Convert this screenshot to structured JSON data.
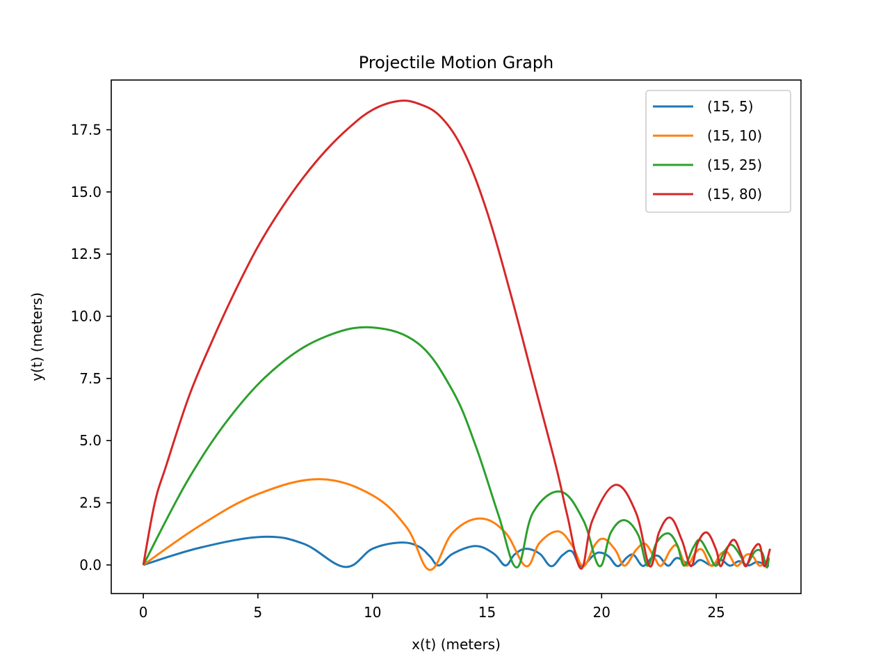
{
  "chart_data": {
    "type": "line",
    "title": "Projectile Motion Graph",
    "xlabel": "x(t) (meters)",
    "ylabel": "y(t) (meters)",
    "xlim": [
      -1.4,
      28.7
    ],
    "ylim": [
      -1.15,
      19.5
    ],
    "xticks": [
      0,
      5,
      10,
      15,
      20,
      25
    ],
    "xtick_labels": [
      "0",
      "5",
      "10",
      "15",
      "20",
      "25"
    ],
    "yticks": [
      0,
      2.5,
      5,
      7.5,
      10,
      12.5,
      15,
      17.5
    ],
    "ytick_labels": [
      "0.0",
      "2.5",
      "5.0",
      "7.5",
      "10.0",
      "12.5",
      "15.0",
      "17.5"
    ],
    "grid": false,
    "legend_position": "top-right",
    "series": [
      {
        "name": "(15, 5)",
        "color": "#1f77b4",
        "points": [
          [
            0,
            0
          ],
          [
            2.5,
            0.7
          ],
          [
            5.2,
            1.13
          ],
          [
            7,
            0.85
          ],
          [
            8.8,
            -0.08
          ],
          [
            10,
            0.65
          ],
          [
            11.2,
            0.9
          ],
          [
            12,
            0.75
          ],
          [
            12.5,
            0.35
          ],
          [
            12.9,
            -0.02
          ],
          [
            13.5,
            0.45
          ],
          [
            14.5,
            0.76
          ],
          [
            15.3,
            0.45
          ],
          [
            15.8,
            -0.02
          ],
          [
            16.2,
            0.42
          ],
          [
            16.7,
            0.65
          ],
          [
            17.3,
            0.45
          ],
          [
            17.8,
            -0.05
          ],
          [
            18.3,
            0.4
          ],
          [
            18.7,
            0.55
          ],
          [
            19.1,
            -0.05
          ],
          [
            19.6,
            0.35
          ],
          [
            19.9,
            0.5
          ],
          [
            20.3,
            0.35
          ],
          [
            20.7,
            -0.05
          ],
          [
            21.1,
            0.3
          ],
          [
            21.4,
            0.4
          ],
          [
            21.8,
            -0.04
          ],
          [
            22.2,
            0.3
          ],
          [
            22.5,
            0.35
          ],
          [
            22.9,
            -0.03
          ],
          [
            23.3,
            0.28
          ],
          [
            23.9,
            -0.02
          ],
          [
            24.3,
            0.2
          ],
          [
            24.8,
            -0.02
          ],
          [
            25.2,
            0.2
          ],
          [
            25.6,
            -0.03
          ],
          [
            26.0,
            0.15
          ],
          [
            26.4,
            -0.02
          ],
          [
            26.8,
            0.12
          ],
          [
            27.3,
            -0.05
          ]
        ]
      },
      {
        "name": "(15, 10)",
        "color": "#ff7f0e",
        "points": [
          [
            0,
            0
          ],
          [
            2.5,
            1.6
          ],
          [
            5,
            2.85
          ],
          [
            7.7,
            3.45
          ],
          [
            10,
            2.8
          ],
          [
            11.5,
            1.5
          ],
          [
            12.5,
            -0.2
          ],
          [
            13.5,
            1.3
          ],
          [
            14.7,
            1.87
          ],
          [
            15.8,
            1.3
          ],
          [
            16.7,
            -0.05
          ],
          [
            17.3,
            0.9
          ],
          [
            18.1,
            1.35
          ],
          [
            18.7,
            0.8
          ],
          [
            19.2,
            -0.05
          ],
          [
            19.7,
            0.8
          ],
          [
            20.1,
            1.05
          ],
          [
            20.6,
            0.6
          ],
          [
            21.0,
            -0.03
          ],
          [
            21.5,
            0.6
          ],
          [
            21.9,
            0.85
          ],
          [
            22.3,
            0.3
          ],
          [
            22.6,
            -0.03
          ],
          [
            23.0,
            0.6
          ],
          [
            23.3,
            0.75
          ],
          [
            23.7,
            -0.03
          ],
          [
            24.1,
            0.5
          ],
          [
            24.4,
            0.6
          ],
          [
            24.8,
            -0.04
          ],
          [
            25.2,
            0.45
          ],
          [
            25.5,
            0.5
          ],
          [
            25.9,
            -0.04
          ],
          [
            26.3,
            0.4
          ],
          [
            26.6,
            0.35
          ],
          [
            26.9,
            -0.03
          ],
          [
            27.3,
            0.25
          ]
        ]
      },
      {
        "name": "(15, 25)",
        "color": "#2ca02c",
        "points": [
          [
            0,
            0
          ],
          [
            2,
            3.5
          ],
          [
            4,
            6.2
          ],
          [
            6,
            8.1
          ],
          [
            8,
            9.2
          ],
          [
            10,
            9.55
          ],
          [
            12,
            8.9
          ],
          [
            13.5,
            7
          ],
          [
            14.5,
            4.8
          ],
          [
            15.5,
            2
          ],
          [
            16.3,
            -0.1
          ],
          [
            17.0,
            2.1
          ],
          [
            18.2,
            2.95
          ],
          [
            19.2,
            1.8
          ],
          [
            19.9,
            -0.05
          ],
          [
            20.4,
            1.3
          ],
          [
            21.0,
            1.8
          ],
          [
            21.6,
            1.2
          ],
          [
            22.0,
            -0.03
          ],
          [
            22.4,
            0.9
          ],
          [
            22.9,
            1.27
          ],
          [
            23.3,
            0.8
          ],
          [
            23.6,
            -0.03
          ],
          [
            24.0,
            0.7
          ],
          [
            24.3,
            1.0
          ],
          [
            24.7,
            0.4
          ],
          [
            25.0,
            -0.03
          ],
          [
            25.4,
            0.6
          ],
          [
            25.7,
            0.8
          ],
          [
            26.1,
            0.3
          ],
          [
            26.3,
            -0.03
          ],
          [
            26.7,
            0.55
          ],
          [
            27.0,
            0.5
          ],
          [
            27.2,
            -0.1
          ],
          [
            27.3,
            0.3
          ]
        ]
      },
      {
        "name": "(15, 80)",
        "color": "#d62728",
        "points": [
          [
            0,
            0
          ],
          [
            0.5,
            2.5
          ],
          [
            1,
            4
          ],
          [
            2,
            6.8
          ],
          [
            3,
            9
          ],
          [
            4,
            11
          ],
          [
            5,
            12.8
          ],
          [
            6,
            14.3
          ],
          [
            7,
            15.6
          ],
          [
            8,
            16.7
          ],
          [
            9,
            17.6
          ],
          [
            10,
            18.3
          ],
          [
            11.1,
            18.65
          ],
          [
            12,
            18.55
          ],
          [
            13,
            18
          ],
          [
            14,
            16.6
          ],
          [
            15,
            14.2
          ],
          [
            16,
            11
          ],
          [
            17,
            7.5
          ],
          [
            18,
            4
          ],
          [
            18.5,
            2
          ],
          [
            19.1,
            -0.15
          ],
          [
            19.6,
            1.8
          ],
          [
            20.6,
            3.22
          ],
          [
            21.5,
            2.1
          ],
          [
            22.1,
            -0.05
          ],
          [
            22.5,
            1.3
          ],
          [
            23.0,
            1.9
          ],
          [
            23.5,
            1.0
          ],
          [
            23.9,
            -0.05
          ],
          [
            24.2,
            0.9
          ],
          [
            24.6,
            1.3
          ],
          [
            25.0,
            0.6
          ],
          [
            25.2,
            -0.05
          ],
          [
            25.5,
            0.7
          ],
          [
            25.8,
            1.0
          ],
          [
            26.1,
            0.4
          ],
          [
            26.3,
            -0.05
          ],
          [
            26.6,
            0.6
          ],
          [
            26.9,
            0.8
          ],
          [
            27.1,
            -0.05
          ],
          [
            27.35,
            0.65
          ]
        ]
      }
    ]
  }
}
